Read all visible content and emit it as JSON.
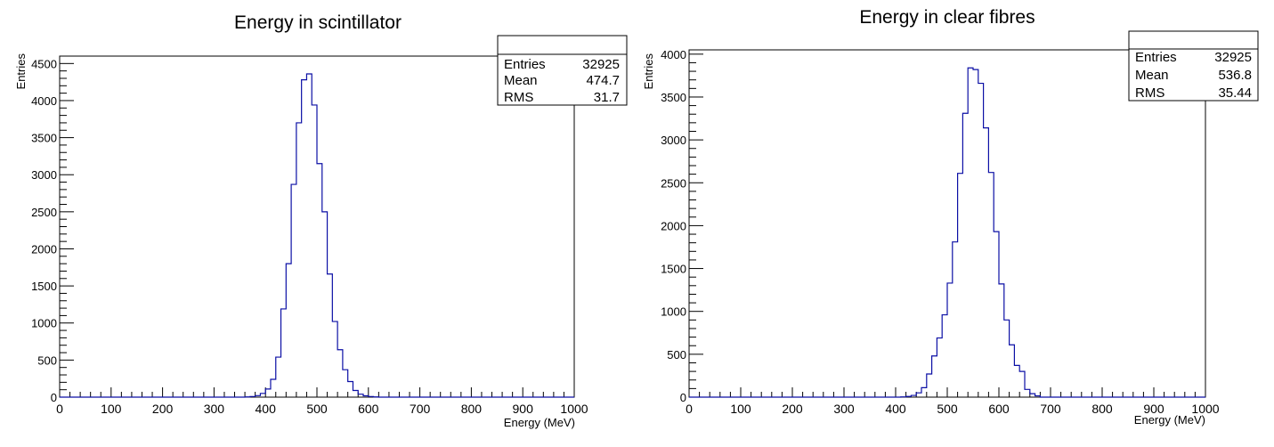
{
  "chart_data": [
    {
      "type": "bar",
      "title": "Energy in scintillator",
      "xlabel": "Energy (MeV)",
      "ylabel": "Entries",
      "xlim": [
        0,
        1000
      ],
      "ylim": [
        0,
        4600
      ],
      "xticks": [
        "0",
        "100",
        "200",
        "300",
        "400",
        "500",
        "600",
        "700",
        "800",
        "900",
        "1000"
      ],
      "yticks": [
        "0",
        "500",
        "1000",
        "1500",
        "2000",
        "2500",
        "3000",
        "3500",
        "4000",
        "4500"
      ],
      "bin_width": 10,
      "bin_edges": [
        360,
        370,
        380,
        390,
        400,
        410,
        420,
        430,
        440,
        450,
        460,
        470,
        480,
        490,
        500,
        510,
        520,
        530,
        540,
        550,
        560,
        570,
        580,
        590,
        600,
        610,
        620
      ],
      "values": [
        3,
        8,
        20,
        50,
        110,
        240,
        540,
        1190,
        1800,
        2870,
        3700,
        4280,
        4360,
        3940,
        3150,
        2500,
        1660,
        1020,
        640,
        370,
        210,
        90,
        40,
        18,
        8,
        3
      ],
      "stats": {
        "entries_label": "Entries",
        "entries": "32925",
        "mean_label": "Mean",
        "mean": "474.7",
        "rms_label": "RMS",
        "rms": "31.7"
      },
      "colors": {
        "line": "#0b0fa5",
        "axis": "#000000"
      },
      "grid": false
    },
    {
      "type": "bar",
      "title": "Energy in clear fibres",
      "xlabel": "Energy (MeV)",
      "ylabel": "Entries",
      "xlim": [
        0,
        1000
      ],
      "ylim": [
        0,
        4050
      ],
      "xticks": [
        "0",
        "100",
        "200",
        "300",
        "400",
        "500",
        "600",
        "700",
        "800",
        "900",
        "1000"
      ],
      "yticks": [
        "0",
        "500",
        "1000",
        "1500",
        "2000",
        "2500",
        "3000",
        "3500",
        "4000"
      ],
      "bin_width": 10,
      "bin_edges": [
        410,
        420,
        430,
        440,
        450,
        460,
        470,
        480,
        490,
        500,
        510,
        520,
        530,
        540,
        550,
        560,
        570,
        580,
        590,
        600,
        610,
        620,
        630,
        640,
        650,
        660,
        670,
        680
      ],
      "values": [
        3,
        8,
        20,
        50,
        110,
        270,
        480,
        690,
        960,
        1330,
        1810,
        2610,
        3310,
        3840,
        3820,
        3660,
        3140,
        2620,
        1930,
        1320,
        900,
        610,
        370,
        300,
        90,
        40,
        15
      ],
      "stats": {
        "entries_label": "Entries",
        "entries": "32925",
        "mean_label": "Mean",
        "mean": "536.8",
        "rms_label": "RMS",
        "rms": "35.44"
      },
      "colors": {
        "line": "#0b0fa5",
        "axis": "#000000"
      },
      "grid": false
    }
  ]
}
